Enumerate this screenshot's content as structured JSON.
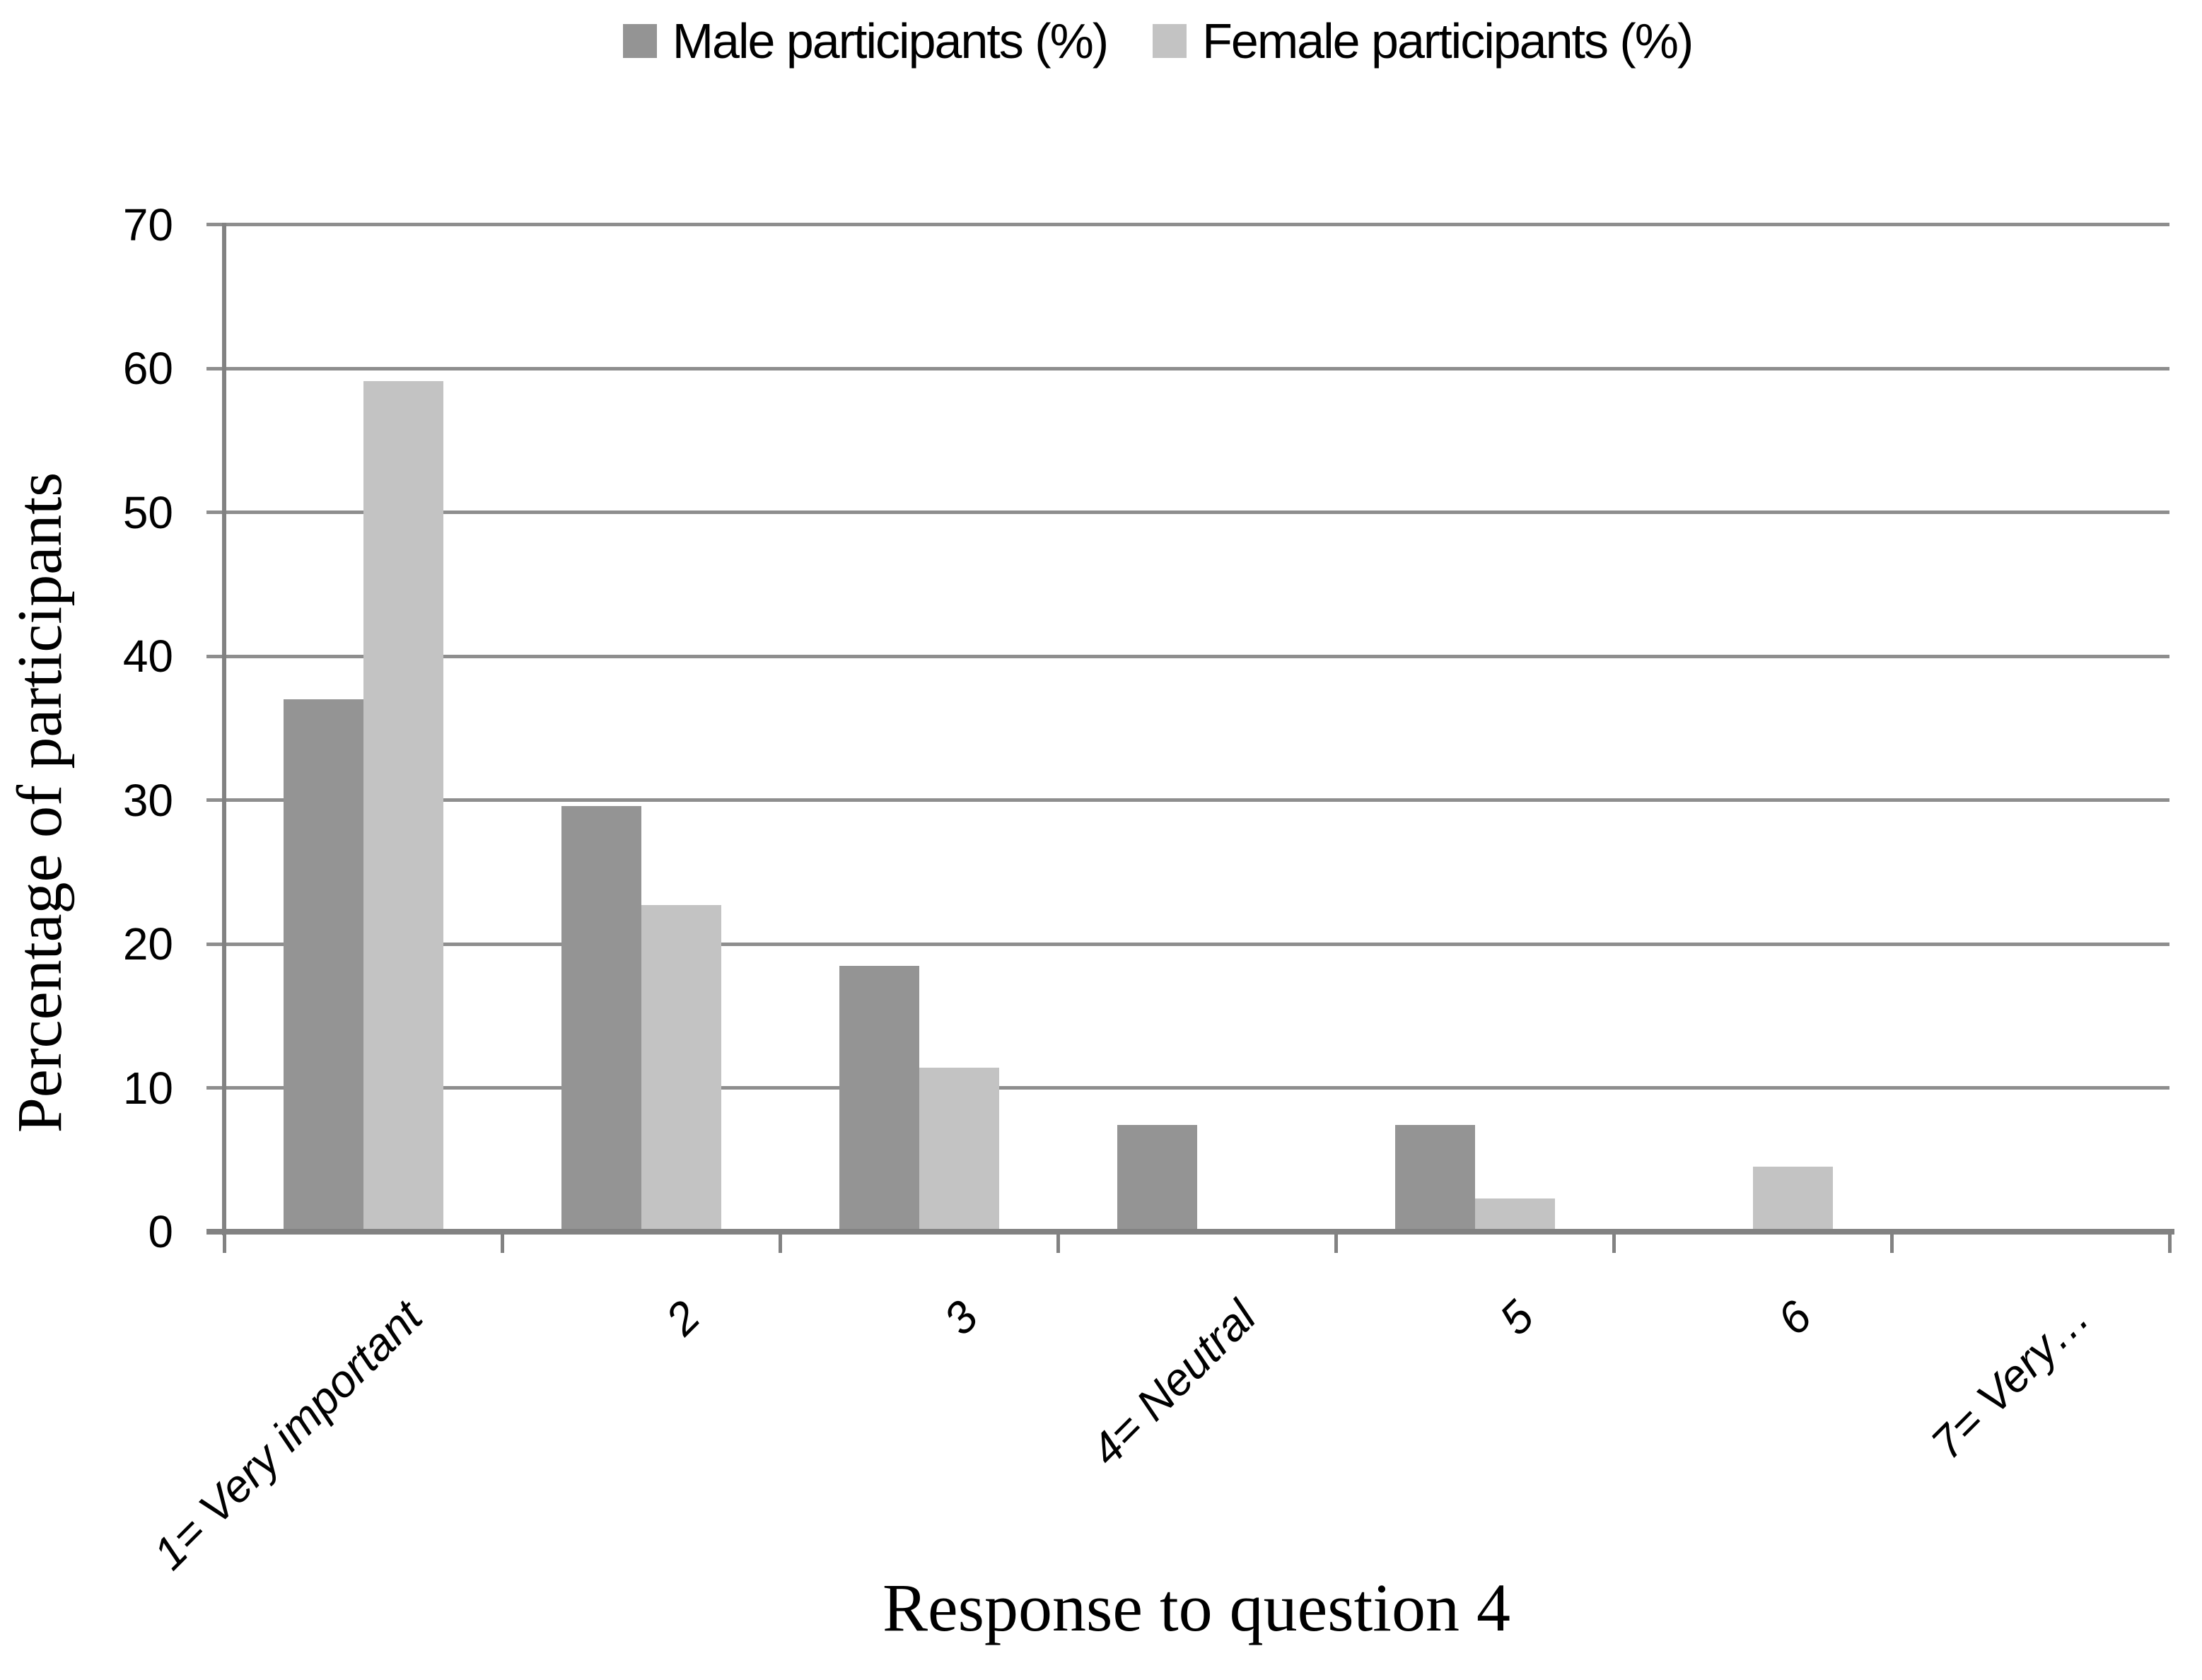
{
  "legend": {
    "male_label": "Male participants (%)",
    "female_label": "Female participants (%)"
  },
  "chart_data": {
    "type": "bar",
    "title": "",
    "categories": [
      "1= Very important",
      "2",
      "3",
      "4= Neutral",
      "5",
      "6",
      "7= Very…"
    ],
    "series": [
      {
        "name": "Male participants (%)",
        "color": "#949494",
        "values": [
          37.0,
          29.6,
          18.5,
          7.4,
          7.4,
          0,
          0
        ]
      },
      {
        "name": "Female participants (%)",
        "color": "#C3C3C3",
        "values": [
          59.1,
          22.7,
          11.4,
          0,
          2.3,
          4.5,
          0
        ]
      }
    ],
    "xlabel": "Response to question 4",
    "ylabel": "Percentage of participants",
    "ylim": [
      0,
      70
    ],
    "yticks": [
      0,
      10,
      20,
      30,
      40,
      50,
      60,
      70
    ],
    "grid": "horizontal",
    "legend_position": "top-center"
  },
  "style": {
    "grid_color": "#8E8E8E",
    "axis_color": "#828282",
    "text_color": "#000000",
    "background": "#FFFFFF"
  }
}
